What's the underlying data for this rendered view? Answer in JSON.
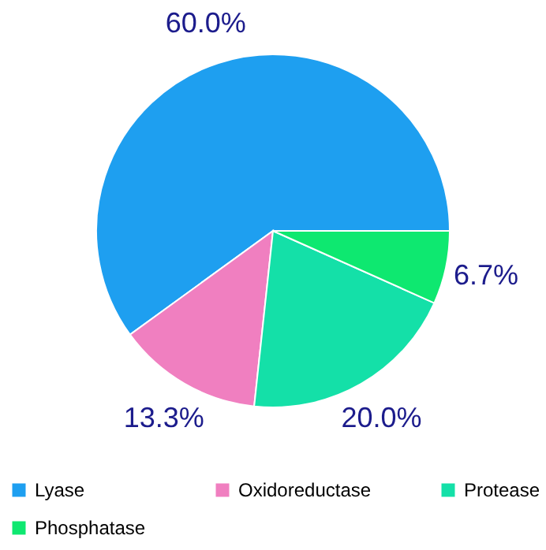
{
  "chart_data": {
    "type": "pie",
    "categories": [
      "Lyase",
      "Oxidoreductase",
      "Protease",
      "Phosphatase"
    ],
    "values": [
      60.0,
      13.3,
      20.0,
      6.7
    ],
    "colors": [
      "#1e9ff0",
      "#f07fc0",
      "#14e0a8",
      "#0ee870"
    ],
    "value_labels": [
      "60.0%",
      "13.3%",
      "20.0%",
      "6.7%"
    ],
    "legend": "bottom"
  }
}
